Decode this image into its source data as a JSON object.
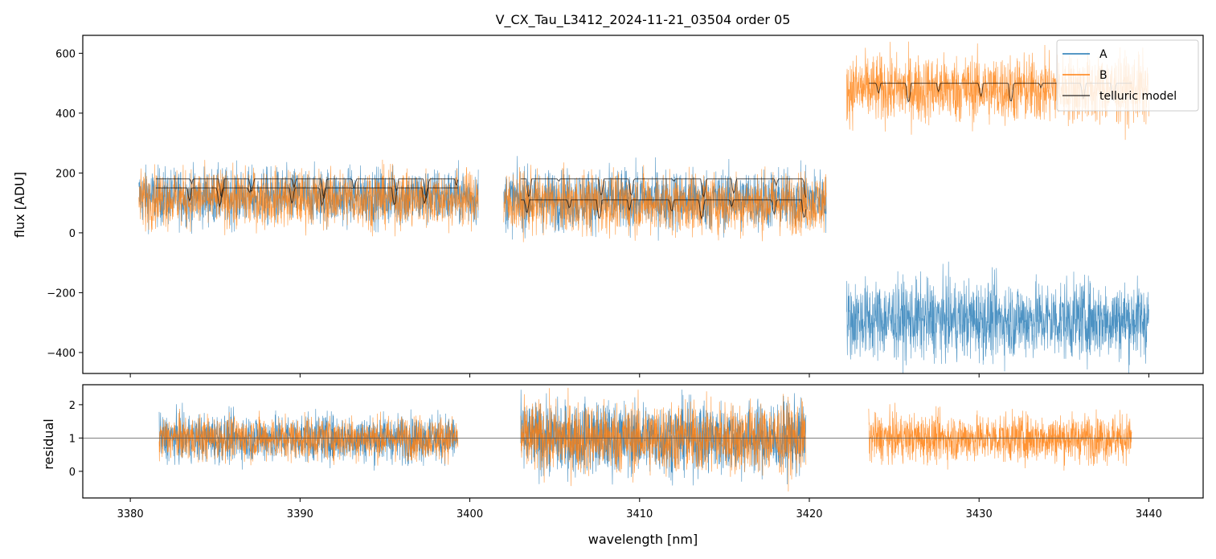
{
  "chart_data": [
    {
      "type": "line",
      "panel": "flux",
      "title": "V_CX_Tau_L3412_2024-11-21_03504  order 05",
      "xlabel": "",
      "ylabel": "flux [ADU]",
      "xlim": [
        3377.2,
        3443.2
      ],
      "ylim": [
        -470,
        660
      ],
      "yticks": [
        -400,
        -200,
        0,
        200,
        400,
        600
      ],
      "yticklabels": [
        "−400",
        "−200",
        "0",
        "200",
        "400",
        "600"
      ],
      "xticks": [
        3380,
        3390,
        3400,
        3410,
        3420,
        3430,
        3440
      ],
      "xticklabels": [],
      "legend_position": "top-right",
      "legend": [
        {
          "label": "A",
          "color": "#1f77b4"
        },
        {
          "label": "B",
          "color": "#ff7f0e"
        },
        {
          "label": "telluric model",
          "color": "#000000"
        }
      ],
      "series": [
        {
          "name": "A",
          "color": "#1f77b4",
          "segments": [
            {
              "x_range": [
                3380.5,
                3400.5
              ],
              "mean": 120,
              "noise": 80
            },
            {
              "x_range": [
                3402.0,
                3421.0
              ],
              "mean": 110,
              "noise": 85
            },
            {
              "x_range": [
                3422.2,
                3440.0
              ],
              "mean": -290,
              "noise": 110
            }
          ]
        },
        {
          "name": "B",
          "color": "#ff7f0e",
          "segments": [
            {
              "x_range": [
                3380.5,
                3400.5
              ],
              "mean": 115,
              "noise": 80
            },
            {
              "x_range": [
                3402.0,
                3421.0
              ],
              "mean": 100,
              "noise": 85
            },
            {
              "x_range": [
                3422.2,
                3440.0
              ],
              "mean": 480,
              "noise": 95
            }
          ]
        },
        {
          "name": "telluric model",
          "color": "#000000",
          "segments": [
            {
              "x_range": [
                3381.5,
                3399.3
              ],
              "continuum": [
                180,
                150
              ]
            },
            {
              "x_range": [
                3403.0,
                3419.8
              ],
              "continuum": [
                180,
                110
              ]
            },
            {
              "x_range": [
                3423.5,
                3439.0
              ],
              "continuum": [
                500
              ]
            }
          ]
        }
      ]
    },
    {
      "type": "line",
      "panel": "residual",
      "title": "",
      "xlabel": "wavelength [nm]",
      "ylabel": "residual",
      "xlim": [
        3377.2,
        3443.2
      ],
      "ylim": [
        -0.8,
        2.6
      ],
      "yticks": [
        0,
        1,
        2
      ],
      "yticklabels": [
        "0",
        "1",
        "2"
      ],
      "xticks": [
        3380,
        3390,
        3400,
        3410,
        3420,
        3430,
        3440
      ],
      "xticklabels": [
        "3380",
        "3390",
        "3400",
        "3410",
        "3420",
        "3430",
        "3440"
      ],
      "reference_line": 1,
      "series": [
        {
          "name": "A",
          "color": "#1f77b4",
          "segments": [
            {
              "x_range": [
                3381.7,
                3399.3
              ],
              "mean": 1.0,
              "noise": 0.6
            },
            {
              "x_range": [
                3403.0,
                3419.8
              ],
              "mean": 1.0,
              "noise": 0.9
            }
          ]
        },
        {
          "name": "B",
          "color": "#ff7f0e",
          "segments": [
            {
              "x_range": [
                3381.7,
                3399.3
              ],
              "mean": 1.0,
              "noise": 0.55
            },
            {
              "x_range": [
                3403.0,
                3419.8
              ],
              "mean": 1.0,
              "noise": 0.9
            },
            {
              "x_range": [
                3423.5,
                3439.0
              ],
              "mean": 1.0,
              "noise": 0.6
            }
          ]
        }
      ]
    }
  ]
}
